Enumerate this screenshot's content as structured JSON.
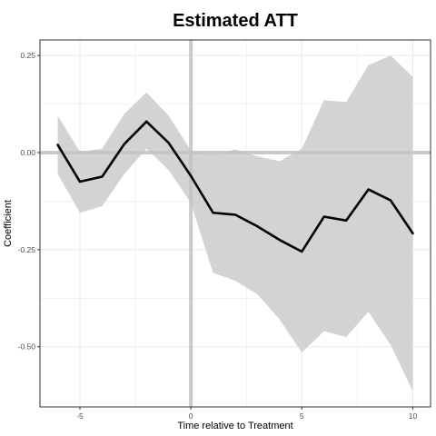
{
  "chart_data": {
    "type": "line",
    "title": "Estimated ATT",
    "xlabel": "Time relative to Treatment",
    "ylabel": "Coefficient",
    "xlim": [
      -6.8,
      10.8
    ],
    "ylim": [
      -0.655,
      0.29
    ],
    "x_ticks": [
      -5,
      0,
      5,
      10
    ],
    "x_tick_labels": [
      "-5",
      "0",
      "5",
      "10"
    ],
    "y_ticks": [
      0.25,
      0.0,
      -0.25,
      -0.5
    ],
    "y_tick_labels": [
      "0.25",
      "0.00",
      "-0.25",
      "-0.50"
    ],
    "grid": true,
    "reference_lines": {
      "x": 0,
      "y": 0
    },
    "colors": {
      "line": "#000000",
      "ribbon": "#d3d3d3",
      "reference": "#c2c2c2",
      "panel_border": "#333333",
      "grid": "#ebebeb"
    },
    "x": [
      -6,
      -5,
      -4,
      -3,
      -2,
      -1,
      0,
      1,
      2,
      3,
      4,
      5,
      6,
      7,
      8,
      9,
      10
    ],
    "estimate": [
      0.02,
      -0.075,
      -0.062,
      0.022,
      0.08,
      0.025,
      -0.06,
      -0.155,
      -0.16,
      -0.19,
      -0.225,
      -0.255,
      -0.165,
      -0.175,
      -0.095,
      -0.123,
      -0.208
    ],
    "ci_upper": [
      0.095,
      0.002,
      0.01,
      0.1,
      0.155,
      0.095,
      0.005,
      -0.005,
      0.008,
      -0.01,
      -0.022,
      0.01,
      0.135,
      0.13,
      0.225,
      0.25,
      0.195
    ],
    "ci_lower": [
      -0.055,
      -0.155,
      -0.138,
      -0.055,
      0.01,
      -0.045,
      -0.13,
      -0.31,
      -0.33,
      -0.365,
      -0.43,
      -0.515,
      -0.46,
      -0.475,
      -0.41,
      -0.495,
      -0.615
    ]
  }
}
